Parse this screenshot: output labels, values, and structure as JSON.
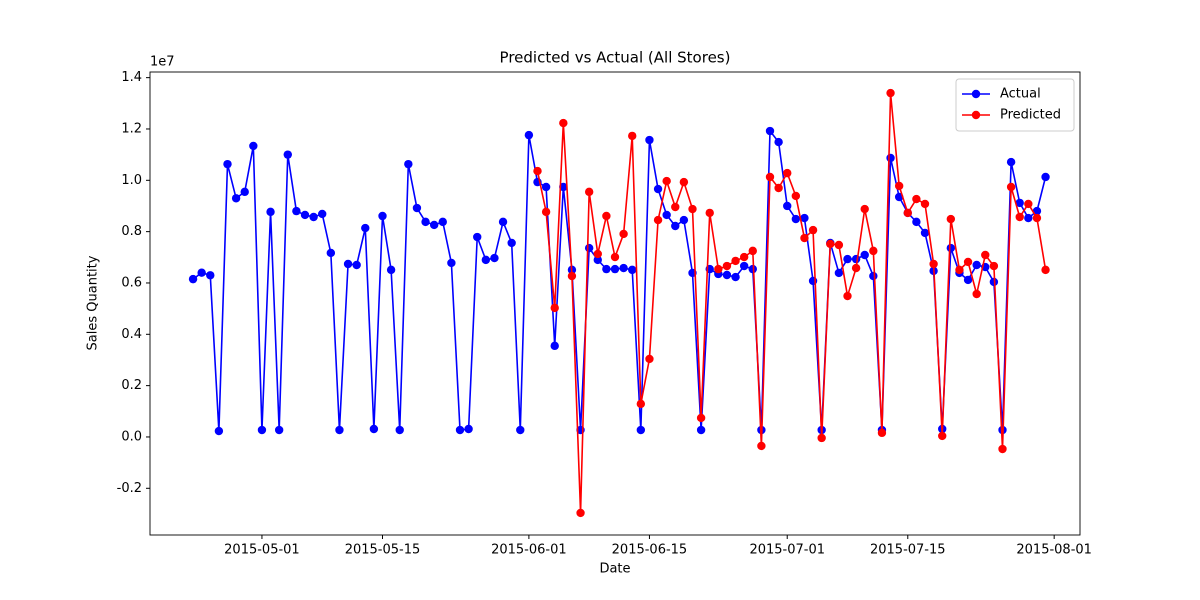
{
  "chart_data": {
    "type": "line",
    "title": "Predicted vs Actual (All Stores)",
    "xlabel": "Date",
    "ylabel": "Sales Quantity",
    "y_offset_label": "1e7",
    "x": [
      "2015-04-23",
      "2015-04-24",
      "2015-04-25",
      "2015-04-26",
      "2015-04-27",
      "2015-04-28",
      "2015-04-29",
      "2015-04-30",
      "2015-05-01",
      "2015-05-02",
      "2015-05-03",
      "2015-05-04",
      "2015-05-05",
      "2015-05-06",
      "2015-05-07",
      "2015-05-08",
      "2015-05-09",
      "2015-05-10",
      "2015-05-11",
      "2015-05-12",
      "2015-05-13",
      "2015-05-14",
      "2015-05-15",
      "2015-05-16",
      "2015-05-17",
      "2015-05-18",
      "2015-05-19",
      "2015-05-20",
      "2015-05-21",
      "2015-05-22",
      "2015-05-23",
      "2015-05-24",
      "2015-05-25",
      "2015-05-26",
      "2015-05-27",
      "2015-05-28",
      "2015-05-29",
      "2015-05-30",
      "2015-05-31",
      "2015-06-01",
      "2015-06-02",
      "2015-06-03",
      "2015-06-04",
      "2015-06-05",
      "2015-06-06",
      "2015-06-07",
      "2015-06-08",
      "2015-06-09",
      "2015-06-10",
      "2015-06-11",
      "2015-06-12",
      "2015-06-13",
      "2015-06-14",
      "2015-06-15",
      "2015-06-16",
      "2015-06-17",
      "2015-06-18",
      "2015-06-19",
      "2015-06-20",
      "2015-06-21",
      "2015-06-22",
      "2015-06-23",
      "2015-06-24",
      "2015-06-25",
      "2015-06-26",
      "2015-06-27",
      "2015-06-28",
      "2015-06-29",
      "2015-06-30",
      "2015-07-01",
      "2015-07-02",
      "2015-07-03",
      "2015-07-04",
      "2015-07-05",
      "2015-07-06",
      "2015-07-07",
      "2015-07-08",
      "2015-07-09",
      "2015-07-10",
      "2015-07-11",
      "2015-07-12",
      "2015-07-13",
      "2015-07-14",
      "2015-07-15",
      "2015-07-16",
      "2015-07-17",
      "2015-07-18",
      "2015-07-19",
      "2015-07-20",
      "2015-07-21",
      "2015-07-22",
      "2015-07-23",
      "2015-07-24",
      "2015-07-25",
      "2015-07-26",
      "2015-07-27",
      "2015-07-28",
      "2015-07-29",
      "2015-07-30",
      "2015-07-31"
    ],
    "series": [
      {
        "name": "Actual",
        "color": "#0000ff",
        "values": [
          0.615,
          0.64,
          0.63,
          0.023,
          1.063,
          0.93,
          0.955,
          1.134,
          0.027,
          0.877,
          0.027,
          1.1,
          0.88,
          0.865,
          0.857,
          0.869,
          0.717,
          0.027,
          0.674,
          0.67,
          0.814,
          0.031,
          0.861,
          0.651,
          0.027,
          1.063,
          0.892,
          0.838,
          0.826,
          0.838,
          0.678,
          0.027,
          0.031,
          0.779,
          0.69,
          0.697,
          0.838,
          0.756,
          0.027,
          1.176,
          0.993,
          0.974,
          0.355,
          0.974,
          0.651,
          0.027,
          0.736,
          0.69,
          0.654,
          0.654,
          0.658,
          0.651,
          0.027,
          1.157,
          0.966,
          0.865,
          0.822,
          0.845,
          0.639,
          0.027,
          0.654,
          0.635,
          0.631,
          0.623,
          0.666,
          0.654,
          0.027,
          1.192,
          1.149,
          0.9,
          0.849,
          0.853,
          0.608,
          0.027,
          0.756,
          0.639,
          0.693,
          0.693,
          0.709,
          0.627,
          0.027,
          1.087,
          0.935,
          0.873,
          0.838,
          0.795,
          0.647,
          0.031,
          0.736,
          0.639,
          0.612,
          0.67,
          0.662,
          0.604,
          0.027,
          1.071,
          0.912,
          0.853,
          0.88,
          1.013
        ]
      },
      {
        "name": "Predicted",
        "color": "#ff0000",
        "values": [
          null,
          null,
          null,
          null,
          null,
          null,
          null,
          null,
          null,
          null,
          null,
          null,
          null,
          null,
          null,
          null,
          null,
          null,
          null,
          null,
          null,
          null,
          null,
          null,
          null,
          null,
          null,
          null,
          null,
          null,
          null,
          null,
          null,
          null,
          null,
          null,
          null,
          null,
          null,
          null,
          1.036,
          0.877,
          0.503,
          1.223,
          0.627,
          -0.296,
          0.955,
          0.713,
          0.861,
          0.701,
          0.791,
          1.173,
          0.129,
          0.304,
          0.845,
          0.997,
          0.896,
          0.993,
          0.888,
          0.074,
          0.873,
          0.654,
          0.666,
          0.686,
          0.701,
          0.725,
          -0.035,
          1.013,
          0.97,
          1.028,
          0.939,
          0.775,
          0.806,
          -0.004,
          0.752,
          0.748,
          0.549,
          0.658,
          0.888,
          0.725,
          0.016,
          1.34,
          0.978,
          0.873,
          0.927,
          0.908,
          0.674,
          0.004,
          0.849,
          0.651,
          0.682,
          0.557,
          0.709,
          0.666,
          -0.047,
          0.974,
          0.857,
          0.908,
          0.853,
          0.651
        ]
      }
    ],
    "xlim": [
      "2015-04-18",
      "2015-08-04"
    ],
    "xticks": [
      "2015-05-01",
      "2015-05-15",
      "2015-06-01",
      "2015-06-15",
      "2015-07-01",
      "2015-07-15",
      "2015-08-01"
    ],
    "ylim": [
      -0.382,
      1.422
    ],
    "yticks": [
      -0.2,
      {
        "value": 0,
        "label": "0.0"
      },
      0.2,
      0.4,
      0.6,
      0.8,
      {
        "value": 1,
        "label": "1.0"
      },
      1.2,
      1.4
    ],
    "grid": false,
    "legend": "upper right"
  }
}
